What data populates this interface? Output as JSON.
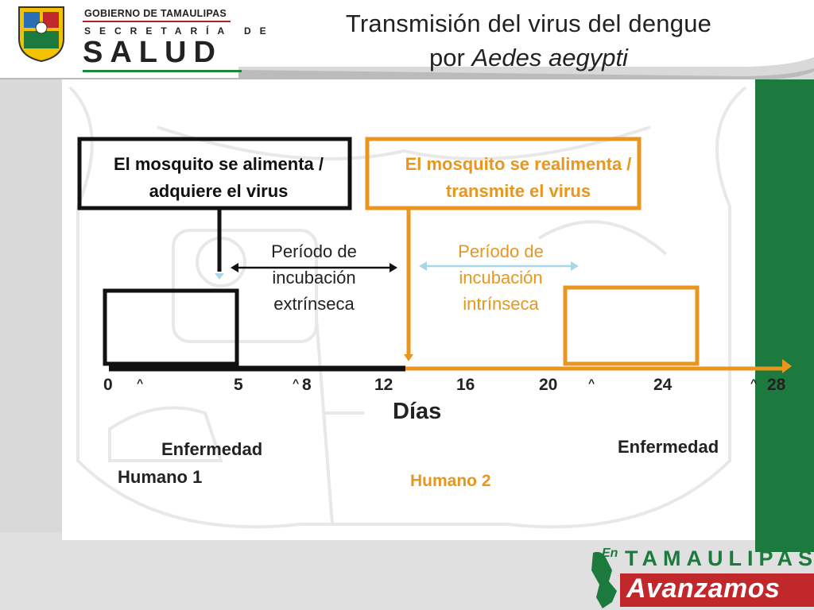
{
  "header": {
    "title_line1": "Transmisión del virus del dengue",
    "title_line2_prefix": "por ",
    "title_line2_species": "Aedes aegypti",
    "logo": {
      "gov": "GOBIERNO DE TAMAULIPAS",
      "secretaria": "SECRETARÍA DE",
      "salud": "SALUD"
    }
  },
  "diagram": {
    "feed_box_1": {
      "line1": "El mosquito se alimenta /",
      "line2": "adquiere el virus"
    },
    "feed_box_2": {
      "line1": "El mosquito se realimenta /",
      "line2": "transmite el virus"
    },
    "period_extrinsic": {
      "line1": "Período de",
      "line2": "incubación",
      "line3": "extrínseca"
    },
    "period_intrinsic": {
      "line1": "Período de",
      "line2": "incubación",
      "line3": "intrínseca"
    },
    "axis": {
      "label": "Días",
      "ticks": [
        "0",
        "5",
        "8",
        "12",
        "16",
        "20",
        "24",
        "28"
      ]
    },
    "human1": {
      "disease": "Enfermedad",
      "name": "Humano 1"
    },
    "human2": {
      "disease": "Enfermedad",
      "name": "Humano 2"
    }
  },
  "footer": {
    "brand_en": "En",
    "brand_state": "TAMAULIPAS",
    "brand_slogan": "Avanzamos"
  },
  "colors": {
    "black": "#111111",
    "orange": "#e8961e",
    "light_blue": "#a8d8e8",
    "green": "#1d7a3e",
    "red": "#c0282b",
    "gray": "#d9d9d9"
  }
}
